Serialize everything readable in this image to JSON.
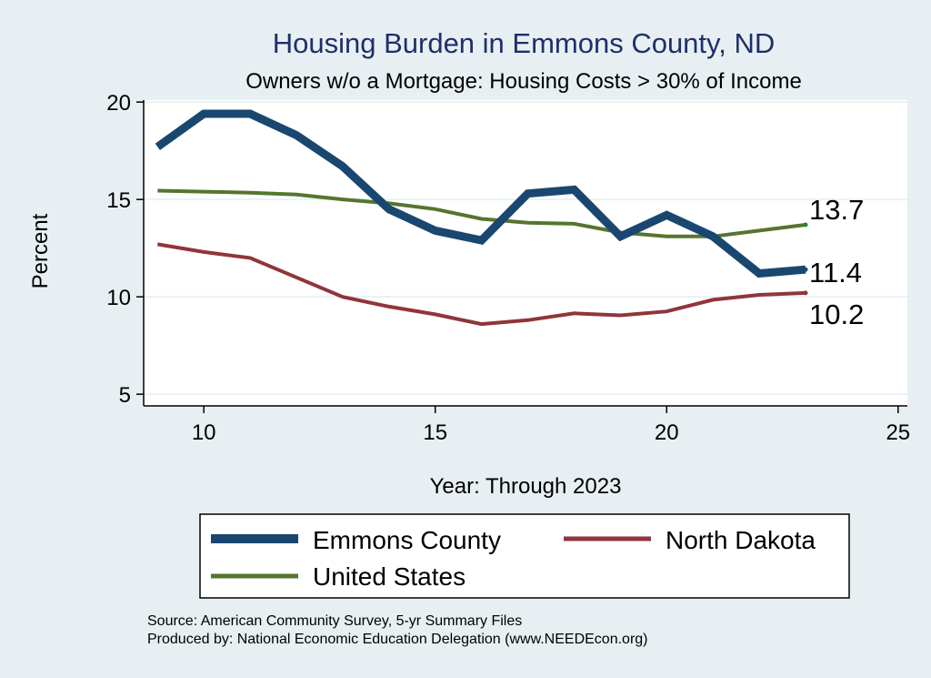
{
  "chart_data": {
    "type": "line",
    "title": "Housing Burden in Emmons County, ND",
    "subtitle": "Owners w/o a Mortgage: Housing Costs > 30% of Income",
    "xlabel": "Year: Through 2023",
    "ylabel": "Percent",
    "xlim": [
      8.7,
      25.2
    ],
    "ylim": [
      4.4,
      20.1
    ],
    "xticks": [
      10,
      15,
      20,
      25
    ],
    "yticks": [
      5,
      10,
      15,
      20
    ],
    "grid": true,
    "legend_position": "bottom",
    "x": [
      9,
      10,
      11,
      12,
      13,
      14,
      15,
      16,
      17,
      18,
      19,
      20,
      21,
      22,
      23
    ],
    "series": [
      {
        "name": "Emmons County",
        "color": "#1a476f",
        "values": [
          17.7,
          19.4,
          19.4,
          18.3,
          16.7,
          14.5,
          13.4,
          12.9,
          15.3,
          15.5,
          13.1,
          14.2,
          13.1,
          11.2,
          11.4
        ],
        "end_label": "11.4"
      },
      {
        "name": "North Dakota",
        "color": "#90353b",
        "values": [
          12.7,
          12.3,
          12.0,
          11.0,
          10.0,
          9.5,
          9.1,
          8.6,
          8.8,
          9.15,
          9.05,
          9.25,
          9.85,
          10.1,
          10.2
        ],
        "end_label": "10.2"
      },
      {
        "name": "United States",
        "color": "#55752f",
        "values": [
          15.45,
          15.4,
          15.35,
          15.25,
          15.0,
          14.8,
          14.5,
          14.0,
          13.8,
          13.75,
          13.3,
          13.1,
          13.1,
          13.4,
          13.7
        ],
        "end_label": "13.7"
      }
    ]
  },
  "legend": {
    "items": [
      "Emmons County",
      "North Dakota",
      "United States"
    ]
  },
  "notes": {
    "source": "Source: American Community Survey, 5-yr Summary Files",
    "produced": "Produced by: National Economic Education Delegation (www.NEEDEcon.org)"
  }
}
